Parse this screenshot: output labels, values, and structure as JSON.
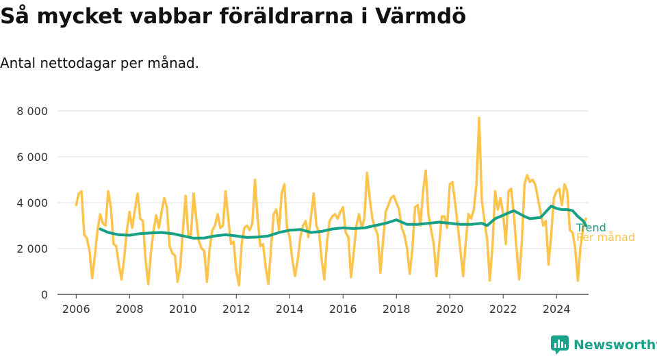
{
  "title": "Så mycket vabbar föräldrarna i Värmdö",
  "subtitle": "Antal nettodagar per månad.",
  "brand": {
    "name": "Newsworthy",
    "icon": "bar-chart-logo-icon"
  },
  "chart_data": {
    "type": "line",
    "title": "Så mycket vabbar föräldrarna i Värmdö",
    "subtitle": "Antal nettodagar per månad.",
    "xlabel": "",
    "ylabel": "",
    "x_range": [
      2005.3,
      2025.2
    ],
    "y_range": [
      0,
      8000
    ],
    "x_ticks": [
      2006,
      2008,
      2010,
      2012,
      2014,
      2016,
      2018,
      2020,
      2022,
      2024
    ],
    "y_ticks": [
      0,
      2000,
      4000,
      6000,
      8000
    ],
    "y_tick_labels": [
      "0",
      "2 000",
      "4 000",
      "6 000",
      "8 000"
    ],
    "grid": "horizontal",
    "legend": "end-of-line labels",
    "colors": {
      "trend": "#16a085",
      "monthly": "#fcc44d"
    },
    "series": [
      {
        "name": "Per månad",
        "color": "#fcc44d",
        "points": [
          [
            2006.0,
            3900
          ],
          [
            2006.1,
            4400
          ],
          [
            2006.2,
            4500
          ],
          [
            2006.3,
            2600
          ],
          [
            2006.4,
            2450
          ],
          [
            2006.5,
            1900
          ],
          [
            2006.6,
            700
          ],
          [
            2006.7,
            1700
          ],
          [
            2006.8,
            2800
          ],
          [
            2006.9,
            3500
          ],
          [
            2007.0,
            3100
          ],
          [
            2007.1,
            3000
          ],
          [
            2007.2,
            4500
          ],
          [
            2007.3,
            3800
          ],
          [
            2007.4,
            2200
          ],
          [
            2007.5,
            2100
          ],
          [
            2007.6,
            1300
          ],
          [
            2007.7,
            650
          ],
          [
            2007.8,
            1600
          ],
          [
            2007.9,
            2800
          ],
          [
            2008.0,
            3600
          ],
          [
            2008.1,
            2900
          ],
          [
            2008.2,
            3700
          ],
          [
            2008.3,
            4400
          ],
          [
            2008.4,
            3300
          ],
          [
            2008.5,
            3200
          ],
          [
            2008.6,
            1500
          ],
          [
            2008.7,
            450
          ],
          [
            2008.8,
            1800
          ],
          [
            2008.9,
            2800
          ],
          [
            2009.0,
            3450
          ],
          [
            2009.1,
            2900
          ],
          [
            2009.2,
            3600
          ],
          [
            2009.3,
            4200
          ],
          [
            2009.4,
            3800
          ],
          [
            2009.5,
            2100
          ],
          [
            2009.6,
            1800
          ],
          [
            2009.7,
            1700
          ],
          [
            2009.8,
            550
          ],
          [
            2009.9,
            1200
          ],
          [
            2010.0,
            2800
          ],
          [
            2010.1,
            4300
          ],
          [
            2010.2,
            2600
          ],
          [
            2010.3,
            2600
          ],
          [
            2010.4,
            4400
          ],
          [
            2010.5,
            3300
          ],
          [
            2010.6,
            2300
          ],
          [
            2010.7,
            2000
          ],
          [
            2010.8,
            1900
          ],
          [
            2010.9,
            550
          ],
          [
            2011.0,
            2000
          ],
          [
            2011.1,
            2800
          ],
          [
            2011.2,
            3000
          ],
          [
            2011.3,
            3500
          ],
          [
            2011.4,
            2900
          ],
          [
            2011.5,
            3000
          ],
          [
            2011.6,
            4500
          ],
          [
            2011.7,
            3300
          ],
          [
            2011.8,
            2200
          ],
          [
            2011.9,
            2300
          ],
          [
            2012.0,
            1000
          ],
          [
            2012.1,
            400
          ],
          [
            2012.2,
            2200
          ],
          [
            2012.3,
            2900
          ],
          [
            2012.4,
            3000
          ],
          [
            2012.5,
            2800
          ],
          [
            2012.6,
            3100
          ],
          [
            2012.7,
            5000
          ],
          [
            2012.8,
            3300
          ],
          [
            2012.9,
            2100
          ],
          [
            2013.0,
            2200
          ],
          [
            2013.1,
            1200
          ],
          [
            2013.2,
            450
          ],
          [
            2013.3,
            2000
          ],
          [
            2013.4,
            3500
          ],
          [
            2013.5,
            3700
          ],
          [
            2013.6,
            2800
          ],
          [
            2013.7,
            4400
          ],
          [
            2013.8,
            4800
          ],
          [
            2013.9,
            2900
          ],
          [
            2014.0,
            2500
          ],
          [
            2014.1,
            1500
          ],
          [
            2014.2,
            800
          ],
          [
            2014.3,
            1500
          ],
          [
            2014.4,
            2500
          ],
          [
            2014.5,
            3000
          ],
          [
            2014.6,
            3200
          ],
          [
            2014.7,
            2500
          ],
          [
            2014.8,
            3400
          ],
          [
            2014.9,
            4400
          ],
          [
            2015.0,
            3000
          ],
          [
            2015.1,
            2700
          ],
          [
            2015.2,
            1500
          ],
          [
            2015.3,
            650
          ],
          [
            2015.4,
            2300
          ],
          [
            2015.5,
            3200
          ],
          [
            2015.6,
            3400
          ],
          [
            2015.7,
            3500
          ],
          [
            2015.8,
            3300
          ],
          [
            2015.9,
            3600
          ],
          [
            2016.0,
            3800
          ],
          [
            2016.1,
            2700
          ],
          [
            2016.2,
            2500
          ],
          [
            2016.3,
            750
          ],
          [
            2016.4,
            1800
          ],
          [
            2016.5,
            3000
          ],
          [
            2016.6,
            3500
          ],
          [
            2016.7,
            2900
          ],
          [
            2016.8,
            3300
          ],
          [
            2016.9,
            5300
          ],
          [
            2017.0,
            4200
          ],
          [
            2017.1,
            3300
          ],
          [
            2017.2,
            2900
          ],
          [
            2017.3,
            2600
          ],
          [
            2017.4,
            950
          ],
          [
            2017.5,
            2300
          ],
          [
            2017.6,
            3600
          ],
          [
            2017.7,
            3900
          ],
          [
            2017.8,
            4200
          ],
          [
            2017.9,
            4300
          ],
          [
            2018.0,
            4000
          ],
          [
            2018.1,
            3700
          ],
          [
            2018.2,
            2900
          ],
          [
            2018.3,
            2600
          ],
          [
            2018.4,
            2000
          ],
          [
            2018.5,
            900
          ],
          [
            2018.6,
            2000
          ],
          [
            2018.7,
            3800
          ],
          [
            2018.8,
            3900
          ],
          [
            2018.9,
            3000
          ],
          [
            2019.0,
            4500
          ],
          [
            2019.1,
            5400
          ],
          [
            2019.2,
            3500
          ],
          [
            2019.3,
            2800
          ],
          [
            2019.4,
            2200
          ],
          [
            2019.5,
            800
          ],
          [
            2019.6,
            2100
          ],
          [
            2019.7,
            3400
          ],
          [
            2019.8,
            3400
          ],
          [
            2019.9,
            2900
          ],
          [
            2020.0,
            4800
          ],
          [
            2020.1,
            4900
          ],
          [
            2020.2,
            4000
          ],
          [
            2020.3,
            3000
          ],
          [
            2020.4,
            1900
          ],
          [
            2020.5,
            800
          ],
          [
            2020.6,
            2300
          ],
          [
            2020.7,
            3500
          ],
          [
            2020.8,
            3300
          ],
          [
            2020.9,
            3700
          ],
          [
            2021.0,
            4800
          ],
          [
            2021.1,
            7700
          ],
          [
            2021.2,
            4100
          ],
          [
            2021.3,
            3200
          ],
          [
            2021.4,
            2400
          ],
          [
            2021.5,
            600
          ],
          [
            2021.6,
            2100
          ],
          [
            2021.7,
            4500
          ],
          [
            2021.8,
            3700
          ],
          [
            2021.9,
            4200
          ],
          [
            2022.0,
            3500
          ],
          [
            2022.1,
            2200
          ],
          [
            2022.2,
            4500
          ],
          [
            2022.3,
            4600
          ],
          [
            2022.4,
            3500
          ],
          [
            2022.5,
            2000
          ],
          [
            2022.6,
            650
          ],
          [
            2022.7,
            2300
          ],
          [
            2022.8,
            4800
          ],
          [
            2022.9,
            5200
          ],
          [
            2023.0,
            4900
          ],
          [
            2023.1,
            5000
          ],
          [
            2023.2,
            4800
          ],
          [
            2023.3,
            4200
          ],
          [
            2023.4,
            3600
          ],
          [
            2023.5,
            3000
          ],
          [
            2023.6,
            3200
          ],
          [
            2023.7,
            1300
          ],
          [
            2023.8,
            2600
          ],
          [
            2023.9,
            4200
          ],
          [
            2024.0,
            4500
          ],
          [
            2024.1,
            4600
          ],
          [
            2024.2,
            3900
          ],
          [
            2024.3,
            4800
          ],
          [
            2024.4,
            4500
          ],
          [
            2024.5,
            2800
          ],
          [
            2024.6,
            2700
          ],
          [
            2024.7,
            2000
          ],
          [
            2024.8,
            600
          ],
          [
            2024.9,
            2100
          ],
          [
            2025.0,
            2900
          ],
          [
            2025.1,
            3300
          ]
        ]
      },
      {
        "name": "Trend",
        "color": "#16a085",
        "points": [
          [
            2006.9,
            2850
          ],
          [
            2007.2,
            2700
          ],
          [
            2007.6,
            2600
          ],
          [
            2008.0,
            2580
          ],
          [
            2008.4,
            2650
          ],
          [
            2008.8,
            2680
          ],
          [
            2009.2,
            2700
          ],
          [
            2009.6,
            2650
          ],
          [
            2010.0,
            2550
          ],
          [
            2010.4,
            2450
          ],
          [
            2010.8,
            2460
          ],
          [
            2011.2,
            2550
          ],
          [
            2011.6,
            2600
          ],
          [
            2012.0,
            2550
          ],
          [
            2012.4,
            2480
          ],
          [
            2012.8,
            2500
          ],
          [
            2013.2,
            2550
          ],
          [
            2013.6,
            2700
          ],
          [
            2014.0,
            2800
          ],
          [
            2014.4,
            2830
          ],
          [
            2014.8,
            2700
          ],
          [
            2015.2,
            2750
          ],
          [
            2015.6,
            2850
          ],
          [
            2016.0,
            2900
          ],
          [
            2016.4,
            2870
          ],
          [
            2016.8,
            2900
          ],
          [
            2017.2,
            3000
          ],
          [
            2017.6,
            3100
          ],
          [
            2018.0,
            3250
          ],
          [
            2018.4,
            3050
          ],
          [
            2018.8,
            3050
          ],
          [
            2019.2,
            3100
          ],
          [
            2019.6,
            3150
          ],
          [
            2020.0,
            3100
          ],
          [
            2020.4,
            3050
          ],
          [
            2020.8,
            3050
          ],
          [
            2021.2,
            3100
          ],
          [
            2021.4,
            3000
          ],
          [
            2021.7,
            3300
          ],
          [
            2022.0,
            3450
          ],
          [
            2022.4,
            3650
          ],
          [
            2022.8,
            3400
          ],
          [
            2023.0,
            3300
          ],
          [
            2023.4,
            3350
          ],
          [
            2023.8,
            3850
          ],
          [
            2024.0,
            3750
          ],
          [
            2024.2,
            3700
          ],
          [
            2024.4,
            3700
          ],
          [
            2024.6,
            3650
          ],
          [
            2024.8,
            3400
          ],
          [
            2025.0,
            3200
          ],
          [
            2025.1,
            3000
          ]
        ]
      }
    ],
    "series_labels": [
      "Trend",
      "Per månad"
    ]
  }
}
